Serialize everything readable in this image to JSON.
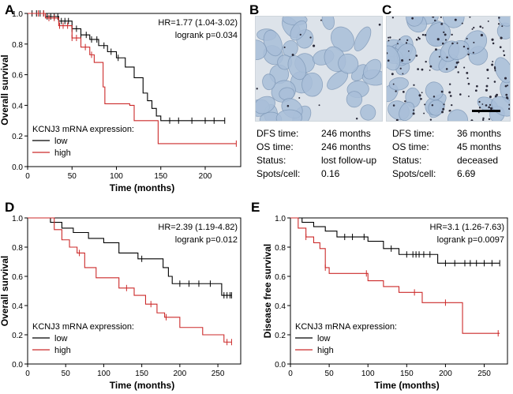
{
  "chart_data": [
    {
      "panel": "A",
      "type": "line",
      "subtype": "kaplan-meier",
      "xlabel": "Time (months)",
      "ylabel": "Overall survival",
      "xlim": [
        0,
        240
      ],
      "ylim": [
        0,
        1.0
      ],
      "xticks": [
        "0",
        "50",
        "100",
        "150",
        "200"
      ],
      "yticks": [
        "0.0",
        "0.2",
        "0.4",
        "0.6",
        "0.8",
        "1.0"
      ],
      "stats": [
        "HR=1.77 (1.04-3.02)",
        "logrank p=0.034"
      ],
      "legend_title": "KCNJ3 mRNA expression:",
      "series": [
        {
          "name": "low",
          "color": "#000000",
          "x": [
            0,
            20,
            35,
            50,
            60,
            70,
            80,
            90,
            100,
            110,
            120,
            130,
            135,
            140,
            145,
            150,
            222
          ],
          "y": [
            1.0,
            0.98,
            0.95,
            0.9,
            0.86,
            0.83,
            0.79,
            0.75,
            0.71,
            0.65,
            0.58,
            0.48,
            0.43,
            0.38,
            0.33,
            0.3,
            0.3
          ],
          "censor_x": [
            5,
            10,
            14,
            18,
            22,
            26,
            30,
            34,
            38,
            42,
            46,
            50,
            55,
            60,
            66,
            72,
            78,
            86,
            94,
            102,
            160,
            170,
            185,
            200,
            210,
            222
          ]
        },
        {
          "name": "high",
          "color": "#cc2a2a",
          "x": [
            0,
            20,
            35,
            50,
            60,
            70,
            75,
            85,
            87,
            115,
            120,
            147,
            235
          ],
          "y": [
            1.0,
            0.97,
            0.92,
            0.84,
            0.78,
            0.73,
            0.68,
            0.52,
            0.41,
            0.4,
            0.3,
            0.15,
            0.15
          ],
          "censor_x": [
            12,
            18,
            24,
            30,
            36,
            40,
            45,
            50,
            55,
            65,
            72,
            235
          ]
        }
      ]
    },
    {
      "panel": "D",
      "type": "line",
      "subtype": "kaplan-meier",
      "xlabel": "Time (months)",
      "ylabel": "Overall survival",
      "xlim": [
        0,
        280
      ],
      "ylim": [
        0,
        1.0
      ],
      "xticks": [
        "0",
        "50",
        "100",
        "150",
        "200",
        "250"
      ],
      "yticks": [
        "0.0",
        "0.2",
        "0.4",
        "0.6",
        "0.8",
        "1.0"
      ],
      "stats": [
        "HR=2.39 (1.19-4.82)",
        "logrank p=0.012"
      ],
      "legend_title": "KCNJ3 mRNA expression:",
      "series": [
        {
          "name": "low",
          "color": "#000000",
          "x": [
            0,
            30,
            45,
            60,
            80,
            100,
            120,
            145,
            165,
            178,
            185,
            190,
            255,
            268
          ],
          "y": [
            1.0,
            0.97,
            0.93,
            0.9,
            0.86,
            0.83,
            0.76,
            0.72,
            0.72,
            0.66,
            0.6,
            0.55,
            0.47,
            0.47
          ],
          "censor_x": [
            150,
            200,
            212,
            225,
            240,
            258,
            262,
            266,
            268
          ]
        },
        {
          "name": "high",
          "color": "#cc2a2a",
          "x": [
            0,
            35,
            45,
            55,
            65,
            75,
            90,
            105,
            120,
            140,
            155,
            170,
            180,
            200,
            210,
            230,
            258,
            268
          ],
          "y": [
            1.0,
            0.92,
            0.85,
            0.8,
            0.76,
            0.66,
            0.59,
            0.59,
            0.52,
            0.47,
            0.41,
            0.35,
            0.32,
            0.25,
            0.25,
            0.2,
            0.15,
            0.15
          ],
          "censor_x": [
            68,
            130,
            162,
            182,
            262,
            268
          ]
        }
      ]
    },
    {
      "panel": "E",
      "type": "line",
      "subtype": "kaplan-meier",
      "xlabel": "Time (months)",
      "ylabel": "Disease free survival",
      "xlim": [
        0,
        280
      ],
      "ylim": [
        0,
        1.0
      ],
      "xticks": [
        "0",
        "50",
        "100",
        "150",
        "200",
        "250"
      ],
      "yticks": [
        "0.0",
        "0.2",
        "0.4",
        "0.6",
        "0.8",
        "1.0"
      ],
      "stats": [
        "HR=3.1 (1.26-7.63)",
        "logrank p=0.0097"
      ],
      "legend_title": "KCNJ3 mRNA expression:",
      "series": [
        {
          "name": "low",
          "color": "#000000",
          "x": [
            0,
            15,
            30,
            45,
            60,
            100,
            120,
            140,
            190,
            270
          ],
          "y": [
            1.0,
            0.97,
            0.94,
            0.91,
            0.87,
            0.84,
            0.79,
            0.75,
            0.69,
            0.69
          ],
          "censor_x": [
            70,
            80,
            95,
            130,
            150,
            158,
            162,
            166,
            172,
            180,
            200,
            212,
            225,
            232,
            240,
            250,
            260,
            270
          ]
        },
        {
          "name": "high",
          "color": "#cc2a2a",
          "x": [
            0,
            10,
            20,
            30,
            38,
            45,
            50,
            100,
            120,
            140,
            170,
            222,
            270
          ],
          "y": [
            1.0,
            0.93,
            0.87,
            0.83,
            0.79,
            0.66,
            0.62,
            0.57,
            0.53,
            0.49,
            0.42,
            0.21,
            0.21
          ],
          "censor_x": [
            20,
            45,
            98,
            160,
            200,
            268
          ]
        }
      ]
    }
  ],
  "panels": {
    "B": {
      "label": "B",
      "rows": [
        {
          "key": "DFS time:",
          "value": "246 months"
        },
        {
          "key": "OS time:",
          "value": "246 months"
        },
        {
          "key": "Status:",
          "value": "lost follow-up"
        },
        {
          "key": "Spots/cell:",
          "value": "0.16"
        }
      ]
    },
    "C": {
      "label": "C",
      "rows": [
        {
          "key": "DFS time:",
          "value": "36 months"
        },
        {
          "key": "OS time:",
          "value": "45 months"
        },
        {
          "key": "Status:",
          "value": "deceased"
        },
        {
          "key": "Spots/cell:",
          "value": "6.69"
        }
      ]
    }
  },
  "labels": {
    "A": "A",
    "D": "D",
    "E": "E"
  },
  "colors": {
    "low": "#000000",
    "high": "#cc2a2a",
    "tissue_bg": "#dde3ea",
    "nucleus": "#a9bfd9",
    "spot": "#2b2b3a"
  }
}
